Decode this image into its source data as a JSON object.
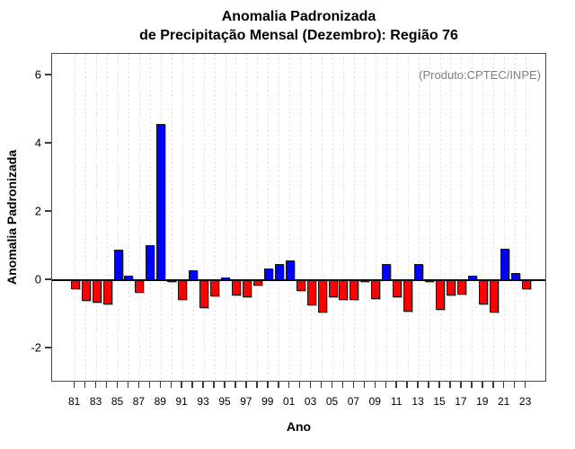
{
  "page": {
    "title_line1": "Anomalia Padronizada",
    "title_line2": "de Precipitação Mensal (Dezembro): Região 76"
  },
  "chart_data": {
    "type": "bar",
    "title": "Anomalia Padronizada de Precipitação Mensal (Dezembro): Região 76",
    "annotation": "(Produto:CPTEC/INPE)",
    "xlabel": "Ano",
    "ylabel": "Anomalia Padronizada",
    "ylim": [
      -3.0,
      6.6
    ],
    "yticks": [
      6,
      4,
      2,
      0,
      -2
    ],
    "grid": "vertical-dotted",
    "legend": "none",
    "positive_color": "#0000ff",
    "negative_color": "#ff0000",
    "categories": [
      "81",
      "82",
      "83",
      "84",
      "85",
      "86",
      "87",
      "88",
      "89",
      "90",
      "91",
      "92",
      "93",
      "94",
      "95",
      "96",
      "97",
      "98",
      "99",
      "00",
      "01",
      "02",
      "03",
      "04",
      "05",
      "06",
      "07",
      "08",
      "09",
      "10",
      "11",
      "12",
      "13",
      "14",
      "15",
      "16",
      "17",
      "18",
      "19",
      "20",
      "21",
      "22",
      "23"
    ],
    "xtick_labels": [
      "81",
      "83",
      "85",
      "87",
      "89",
      "91",
      "93",
      "95",
      "97",
      "99",
      "01",
      "03",
      "05",
      "07",
      "09",
      "11",
      "13",
      "15",
      "17",
      "19",
      "21",
      "23"
    ],
    "values": [
      -0.25,
      -0.6,
      -0.66,
      -0.72,
      0.9,
      0.12,
      -0.38,
      1.02,
      4.58,
      -0.04,
      -0.58,
      0.3,
      -0.82,
      -0.48,
      0.08,
      -0.46,
      -0.51,
      -0.15,
      0.33,
      0.47,
      0.57,
      -0.32,
      -0.73,
      -0.96,
      -0.5,
      -0.58,
      -0.58,
      -0.03,
      -0.55,
      0.47,
      -0.5,
      -0.92,
      0.48,
      -0.03,
      -0.86,
      -0.44,
      -0.42,
      0.12,
      -0.7,
      -0.96,
      0.93,
      0.22,
      -0.26
    ]
  }
}
